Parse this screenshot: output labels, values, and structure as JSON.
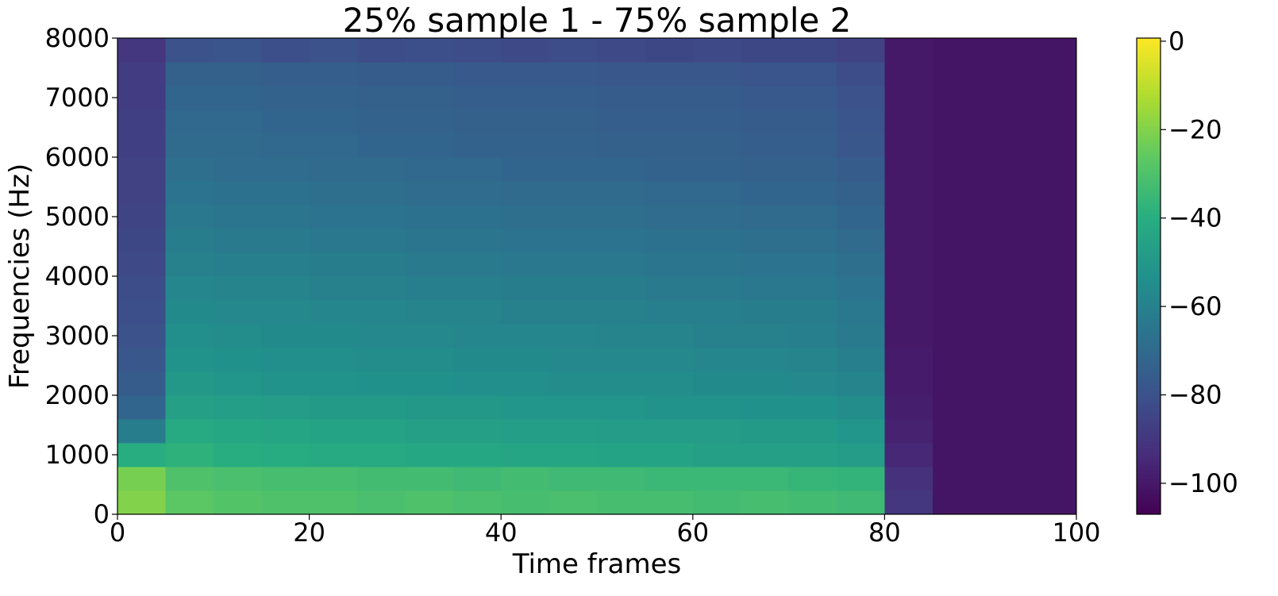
{
  "chart_data": {
    "type": "heatmap",
    "title": "25% sample 1 - 75% sample 2",
    "xlabel": "Time frames",
    "ylabel": "Frequencies (Hz)",
    "colormap": "viridis",
    "xlim": [
      0,
      100
    ],
    "xticks": [
      0,
      20,
      40,
      60,
      80,
      100
    ],
    "ylim": [
      0,
      8000
    ],
    "yticks": [
      0,
      1000,
      2000,
      3000,
      4000,
      5000,
      6000,
      7000,
      8000
    ],
    "zlim": [
      -107,
      0.7
    ],
    "zticks": [
      0,
      {
        "value": -20,
        "label": "−20"
      },
      {
        "value": -40,
        "label": "−40"
      },
      {
        "value": -60,
        "label": "−60"
      },
      {
        "value": -80,
        "label": "−80"
      },
      {
        "value": -100,
        "label": "−100"
      }
    ],
    "xbins": [
      0,
      5,
      10,
      15,
      20,
      25,
      30,
      35,
      40,
      45,
      50,
      55,
      60,
      65,
      70,
      75,
      80,
      85,
      90,
      95,
      100
    ],
    "ybins": [
      0,
      400,
      800,
      1200,
      1600,
      2000,
      2400,
      2800,
      3200,
      3600,
      4000,
      4400,
      4800,
      5200,
      5600,
      6000,
      6400,
      6800,
      7200,
      7600,
      8000
    ],
    "values": [
      [
        -20,
        -27,
        -29,
        -30,
        -30,
        -31,
        -30,
        -31,
        -32,
        -31,
        -32,
        -32,
        -33,
        -32,
        -33,
        -34,
        -90,
        -101,
        -101,
        -101
      ],
      [
        -22,
        -30,
        -31,
        -32,
        -32,
        -33,
        -33,
        -34,
        -33,
        -34,
        -34,
        -35,
        -35,
        -35,
        -36,
        -37,
        -92,
        -101,
        -101,
        -101
      ],
      [
        -40,
        -38,
        -40,
        -41,
        -42,
        -42,
        -43,
        -43,
        -44,
        -44,
        -45,
        -45,
        -46,
        -46,
        -46,
        -48,
        -95,
        -101,
        -101,
        -101
      ],
      [
        -62,
        -42,
        -43,
        -44,
        -45,
        -45,
        -46,
        -46,
        -47,
        -47,
        -48,
        -48,
        -48,
        -49,
        -49,
        -51,
        -97,
        -101,
        -101,
        -101
      ],
      [
        -72,
        -46,
        -47,
        -48,
        -49,
        -49,
        -50,
        -50,
        -51,
        -51,
        -51,
        -52,
        -52,
        -53,
        -53,
        -55,
        -98,
        -101,
        -101,
        -101
      ],
      [
        -76,
        -50,
        -51,
        -52,
        -52,
        -53,
        -53,
        -54,
        -54,
        -55,
        -55,
        -55,
        -56,
        -56,
        -57,
        -59,
        -99,
        -101,
        -101,
        -101
      ],
      [
        -78,
        -52,
        -53,
        -54,
        -54,
        -55,
        -55,
        -56,
        -56,
        -57,
        -57,
        -57,
        -58,
        -58,
        -59,
        -61,
        -99,
        -101,
        -101,
        -101
      ],
      [
        -80,
        -54,
        -55,
        -56,
        -56,
        -57,
        -57,
        -58,
        -58,
        -58,
        -59,
        -59,
        -60,
        -60,
        -61,
        -63,
        -100,
        -101,
        -101,
        -101
      ],
      [
        -81,
        -56,
        -57,
        -57,
        -58,
        -58,
        -59,
        -59,
        -60,
        -60,
        -60,
        -61,
        -61,
        -62,
        -62,
        -64,
        -100,
        -101,
        -101,
        -101
      ],
      [
        -82,
        -58,
        -59,
        -59,
        -60,
        -60,
        -61,
        -61,
        -62,
        -62,
        -62,
        -63,
        -63,
        -64,
        -64,
        -66,
        -100,
        -101,
        -101,
        -101
      ],
      [
        -83,
        -60,
        -61,
        -61,
        -62,
        -62,
        -63,
        -63,
        -64,
        -64,
        -64,
        -65,
        -65,
        -66,
        -66,
        -68,
        -100,
        -101,
        -101,
        -101
      ],
      [
        -84,
        -62,
        -63,
        -63,
        -64,
        -64,
        -65,
        -65,
        -66,
        -66,
        -66,
        -67,
        -67,
        -68,
        -68,
        -70,
        -100,
        -101,
        -101,
        -101
      ],
      [
        -85,
        -64,
        -65,
        -65,
        -66,
        -66,
        -67,
        -67,
        -68,
        -68,
        -68,
        -69,
        -69,
        -70,
        -70,
        -72,
        -100,
        -101,
        -101,
        -101
      ],
      [
        -86,
        -66,
        -67,
        -67,
        -68,
        -68,
        -69,
        -69,
        -70,
        -70,
        -70,
        -71,
        -71,
        -72,
        -72,
        -74,
        -100,
        -101,
        -101,
        -101
      ],
      [
        -86,
        -68,
        -69,
        -69,
        -70,
        -70,
        -71,
        -71,
        -72,
        -72,
        -72,
        -73,
        -73,
        -74,
        -74,
        -76,
        -100,
        -101,
        -101,
        -101
      ],
      [
        -87,
        -70,
        -70,
        -71,
        -71,
        -72,
        -72,
        -73,
        -73,
        -73,
        -74,
        -74,
        -74,
        -75,
        -75,
        -78,
        -100,
        -101,
        -101,
        -101
      ],
      [
        -87,
        -71,
        -71,
        -72,
        -72,
        -73,
        -73,
        -74,
        -74,
        -74,
        -75,
        -75,
        -75,
        -76,
        -76,
        -79,
        -100,
        -101,
        -101,
        -101
      ],
      [
        -88,
        -72,
        -72,
        -73,
        -73,
        -74,
        -74,
        -75,
        -75,
        -75,
        -76,
        -76,
        -76,
        -77,
        -77,
        -80,
        -100,
        -101,
        -101,
        -101
      ],
      [
        -88,
        -74,
        -74,
        -75,
        -75,
        -76,
        -76,
        -77,
        -77,
        -77,
        -78,
        -78,
        -78,
        -79,
        -79,
        -82,
        -100,
        -101,
        -101,
        -101
      ],
      [
        -90,
        -80,
        -79,
        -81,
        -80,
        -82,
        -81,
        -82,
        -83,
        -82,
        -83,
        -84,
        -83,
        -84,
        -84,
        -86,
        -100,
        -101,
        -101,
        -101
      ]
    ]
  }
}
